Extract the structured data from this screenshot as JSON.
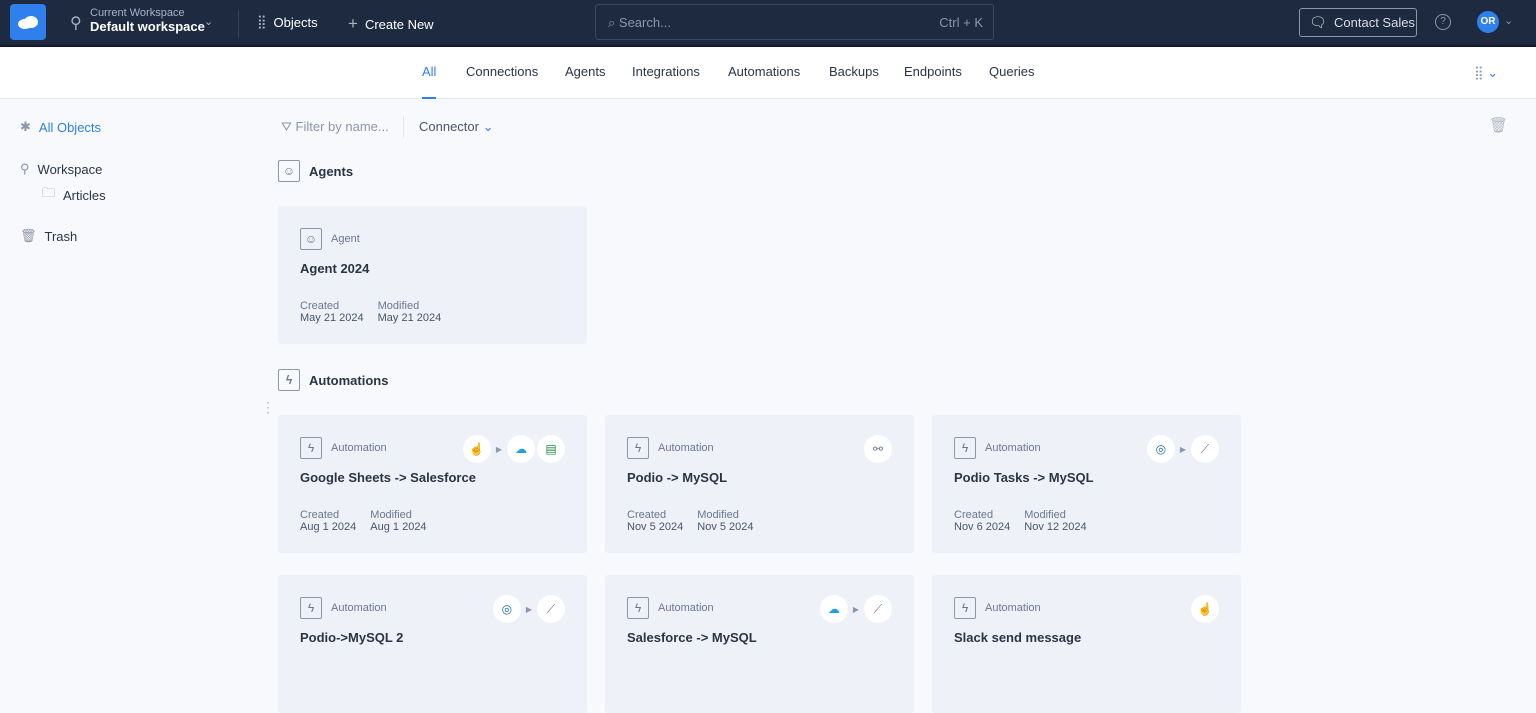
{
  "header": {
    "workspace_caption": "Current Workspace",
    "workspace_name": "Default workspace",
    "objects_label": "Objects",
    "create_label": "Create New",
    "search_placeholder": "Search...",
    "search_shortcut": "Ctrl + K",
    "contact_label": "Contact Sales",
    "help_label": "?",
    "avatar_initials": "OR"
  },
  "tabs": [
    "All",
    "Connections",
    "Agents",
    "Integrations",
    "Automations",
    "Backups",
    "Endpoints",
    "Queries"
  ],
  "active_tab": "All",
  "sidebar": {
    "all_objects": "All Objects",
    "workspace": "Workspace",
    "articles": "Articles",
    "trash": "Trash"
  },
  "toolbar": {
    "filter_placeholder": "Filter by name...",
    "connector_label": "Connector"
  },
  "colors": {
    "accent": "#2f80ed",
    "topbar": "#1e2a40",
    "card": "#eef2f8"
  },
  "sections": [
    {
      "title": "Agents",
      "icon": "agent-icon",
      "cards": [
        {
          "type": "Agent",
          "name": "Agent 2024",
          "created_label": "Created",
          "created": "May 21 2024",
          "modified_label": "Modified",
          "modified": "May 21 2024",
          "connectors": []
        }
      ]
    },
    {
      "title": "Automations",
      "icon": "lightning-icon",
      "cards": [
        {
          "type": "Automation",
          "name": "Google Sheets -> Salesforce",
          "created_label": "Created",
          "created": "Aug 1 2024",
          "modified_label": "Modified",
          "modified": "Aug 1 2024",
          "connectors": [
            "manual-trigger-icon",
            "arrow",
            "salesforce-icon",
            "google-sheets-icon"
          ]
        },
        {
          "type": "Automation",
          "name": "Podio -> MySQL",
          "created_label": "Created",
          "created": "Nov 5 2024",
          "modified_label": "Modified",
          "modified": "Nov 5 2024",
          "connectors": [
            "webhook-icon"
          ]
        },
        {
          "type": "Automation",
          "name": "Podio Tasks -> MySQL",
          "created_label": "Created",
          "created": "Nov 6 2024",
          "modified_label": "Modified",
          "modified": "Nov 12 2024",
          "connectors": [
            "podio-icon",
            "arrow",
            "mysql-icon"
          ]
        },
        {
          "type": "Automation",
          "name": "Podio->MySQL 2",
          "connectors": [
            "podio-icon",
            "arrow",
            "mysql-icon"
          ]
        },
        {
          "type": "Automation",
          "name": "Salesforce -> MySQL",
          "connectors": [
            "salesforce-icon",
            "arrow",
            "mysql-icon"
          ]
        },
        {
          "type": "Automation",
          "name": "Slack send message",
          "connectors": [
            "manual-trigger-icon"
          ]
        }
      ]
    }
  ]
}
